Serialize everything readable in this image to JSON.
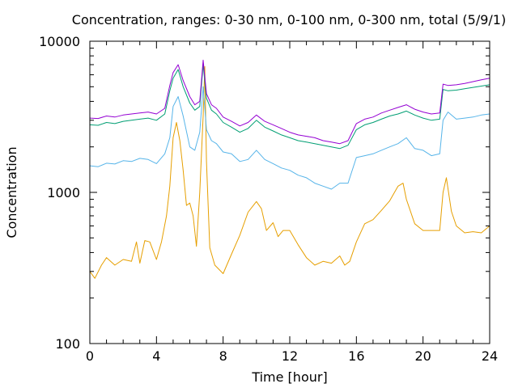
{
  "chart_data": {
    "type": "line",
    "title": "Concentration, ranges: 0-30 nm, 0-100 nm, 0-300 nm, total (5/9/1)",
    "xlabel": "Time [hour]",
    "ylabel": "Concentration",
    "xlim": [
      0,
      24
    ],
    "ylim": [
      100,
      10000
    ],
    "yscale": "log",
    "grid": false,
    "legend": "none",
    "x_ticks": [
      "0",
      "4",
      "8",
      "12",
      "16",
      "20",
      "24"
    ],
    "y_ticks": [
      "100",
      "1000",
      "10000"
    ],
    "series": [
      {
        "color": "#e69f00",
        "x": [
          0,
          0.3,
          0.7,
          1,
          1.5,
          2,
          2.5,
          2.8,
          3,
          3.3,
          3.6,
          4,
          4.3,
          4.6,
          4.8,
          5,
          5.2,
          5.4,
          5.6,
          5.8,
          6,
          6.2,
          6.4,
          6.6,
          6.8,
          6.9,
          7,
          7.2,
          7.5,
          8,
          8.5,
          9,
          9.5,
          10,
          10.3,
          10.6,
          11,
          11.3,
          11.6,
          12,
          12.5,
          13,
          13.5,
          14,
          14.5,
          15,
          15.3,
          15.6,
          16,
          16.5,
          17,
          17.5,
          18,
          18.5,
          18.8,
          19,
          19.5,
          20,
          20.5,
          21,
          21.2,
          21.4,
          21.7,
          22,
          22.5,
          23,
          23.5,
          24
        ],
        "values": [
          300,
          270,
          330,
          370,
          330,
          360,
          350,
          470,
          340,
          480,
          470,
          360,
          470,
          700,
          1100,
          2300,
          2900,
          2200,
          1400,
          820,
          850,
          700,
          440,
          1000,
          3200,
          6800,
          1600,
          430,
          330,
          290,
          390,
          520,
          740,
          870,
          780,
          560,
          630,
          510,
          560,
          560,
          450,
          370,
          330,
          350,
          340,
          380,
          330,
          350,
          470,
          620,
          660,
          760,
          880,
          1100,
          1150,
          900,
          620,
          560,
          560,
          560,
          1000,
          1250,
          750,
          600,
          540,
          550,
          540,
          600
        ]
      },
      {
        "color": "#56b4e9",
        "x": [
          0,
          0.5,
          1,
          1.5,
          2,
          2.5,
          3,
          3.5,
          4,
          4.5,
          4.8,
          5,
          5.3,
          5.6,
          6,
          6.3,
          6.6,
          6.8,
          7,
          7.3,
          7.6,
          8,
          8.5,
          9,
          9.5,
          10,
          10.5,
          11,
          11.5,
          12,
          12.5,
          13,
          13.5,
          14,
          14.5,
          15,
          15.5,
          16,
          16.5,
          17,
          17.5,
          18,
          18.5,
          19,
          19.5,
          20,
          20.5,
          21,
          21.2,
          21.5,
          22,
          22.5,
          23,
          23.5,
          24
        ],
        "values": [
          1500,
          1480,
          1560,
          1540,
          1620,
          1600,
          1680,
          1650,
          1550,
          1800,
          2300,
          3700,
          4300,
          3200,
          2000,
          1900,
          2500,
          5000,
          2600,
          2200,
          2100,
          1850,
          1800,
          1600,
          1650,
          1900,
          1650,
          1550,
          1450,
          1400,
          1300,
          1250,
          1150,
          1100,
          1050,
          1150,
          1150,
          1700,
          1750,
          1800,
          1900,
          2000,
          2100,
          2300,
          1950,
          1900,
          1750,
          1800,
          3000,
          3400,
          3050,
          3100,
          3150,
          3250,
          3300
        ]
      },
      {
        "color": "#009e73",
        "x": [
          0,
          0.5,
          1,
          1.5,
          2,
          2.5,
          3,
          3.5,
          4,
          4.5,
          4.8,
          5,
          5.3,
          5.6,
          6,
          6.3,
          6.6,
          6.8,
          7,
          7.3,
          7.6,
          8,
          8.5,
          9,
          9.5,
          10,
          10.5,
          11,
          11.5,
          12,
          12.5,
          13,
          13.5,
          14,
          14.5,
          15,
          15.5,
          16,
          16.5,
          17,
          17.5,
          18,
          18.5,
          19,
          19.5,
          20,
          20.5,
          21,
          21.2,
          21.5,
          22,
          22.5,
          23,
          23.5,
          24
        ],
        "values": [
          2800,
          2780,
          2900,
          2850,
          2950,
          3000,
          3050,
          3100,
          3000,
          3300,
          4700,
          5700,
          6500,
          5000,
          3900,
          3500,
          3700,
          7000,
          4200,
          3500,
          3300,
          2900,
          2700,
          2500,
          2650,
          3000,
          2700,
          2550,
          2400,
          2300,
          2200,
          2150,
          2100,
          2050,
          2000,
          1950,
          2050,
          2600,
          2800,
          2900,
          3050,
          3200,
          3300,
          3450,
          3250,
          3100,
          3000,
          3050,
          4800,
          4700,
          4750,
          4850,
          4950,
          5050,
          5150
        ]
      },
      {
        "color": "#9400d3",
        "x": [
          0,
          0.5,
          1,
          1.5,
          2,
          2.5,
          3,
          3.5,
          4,
          4.5,
          4.8,
          5,
          5.3,
          5.6,
          6,
          6.3,
          6.6,
          6.8,
          7,
          7.3,
          7.6,
          8,
          8.5,
          9,
          9.5,
          10,
          10.5,
          11,
          11.5,
          12,
          12.5,
          13,
          13.5,
          14,
          14.5,
          15,
          15.5,
          16,
          16.5,
          17,
          17.5,
          18,
          18.5,
          19,
          19.5,
          20,
          20.5,
          21,
          21.2,
          21.5,
          22,
          22.5,
          23,
          23.5,
          24
        ],
        "values": [
          3100,
          3080,
          3200,
          3150,
          3250,
          3300,
          3350,
          3400,
          3300,
          3600,
          5100,
          6200,
          7000,
          5500,
          4300,
          3800,
          4000,
          7500,
          4500,
          3800,
          3600,
          3150,
          2950,
          2750,
          2900,
          3250,
          2950,
          2800,
          2650,
          2500,
          2400,
          2350,
          2300,
          2200,
          2150,
          2100,
          2200,
          2850,
          3050,
          3150,
          3350,
          3500,
          3650,
          3800,
          3550,
          3400,
          3300,
          3350,
          5200,
          5100,
          5150,
          5250,
          5400,
          5550,
          5700
        ]
      }
    ]
  }
}
